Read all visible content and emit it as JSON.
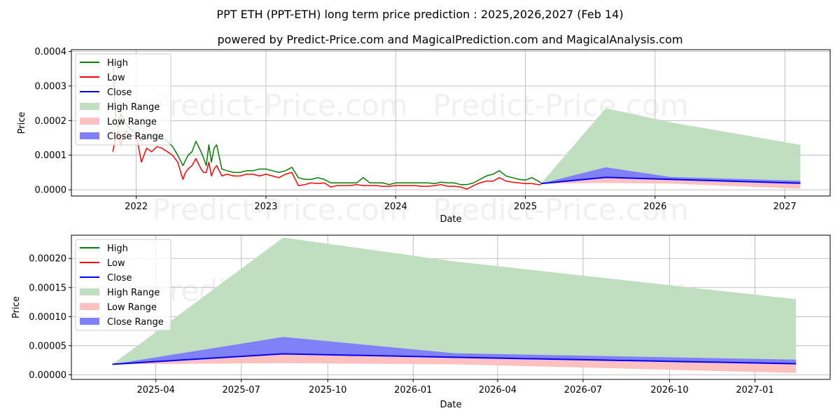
{
  "title_line1": "PPT ETH (PPT-ETH) long term price prediction : 2025,2026,2027 (Feb 14)",
  "title_line2": "powered by Predict-Price.com and MagicalPrediction.com and MagicalAnalysis.com",
  "watermark": "Predict-Price.com",
  "colors": {
    "high": "#008000",
    "low": "#ff0000",
    "close": "#0000ff",
    "high_range": "#c0dfc0",
    "low_range": "#ffc0c0",
    "close_range": "#8080f8",
    "grid": "#b0b0b0"
  },
  "legend": [
    "High",
    "Low",
    "Close",
    "High Range",
    "Low Range",
    "Close Range"
  ],
  "chart_data": [
    {
      "type": "line",
      "name": "history-and-forecast",
      "xlabel": "Date",
      "ylabel": "Price",
      "grid": true,
      "legend_position": "upper-left",
      "xlim": [
        2021.5,
        2027.35
      ],
      "ylim": [
        -1.8e-05,
        0.000405
      ],
      "x_ticks": [
        2022,
        2023,
        2024,
        2025,
        2026,
        2027
      ],
      "x_tick_labels": [
        "2022",
        "2023",
        "2024",
        "2025",
        "2026",
        "2027"
      ],
      "y_ticks": [
        0,
        0.0001,
        0.0002,
        0.0003,
        0.0004
      ],
      "y_tick_labels": [
        "0.0000",
        "0.0001",
        "0.0002",
        "0.0003",
        "0.0004"
      ],
      "history": {
        "x": [
          2021.82,
          2021.84,
          2021.86,
          2021.88,
          2021.92,
          2021.96,
          2022.0,
          2022.04,
          2022.08,
          2022.12,
          2022.16,
          2022.2,
          2022.24,
          2022.28,
          2022.32,
          2022.36,
          2022.38,
          2022.4,
          2022.43,
          2022.46,
          2022.5,
          2022.52,
          2022.54,
          2022.56,
          2022.58,
          2022.6,
          2022.62,
          2022.66,
          2022.7,
          2022.75,
          2022.8,
          2022.85,
          2022.9,
          2022.95,
          2023.0,
          2023.05,
          2023.1,
          2023.15,
          2023.2,
          2023.25,
          2023.3,
          2023.35,
          2023.4,
          2023.45,
          2023.5,
          2023.55,
          2023.6,
          2023.65,
          2023.7,
          2023.75,
          2023.8,
          2023.85,
          2023.9,
          2023.95,
          2024.0,
          2024.05,
          2024.1,
          2024.15,
          2024.2,
          2024.25,
          2024.3,
          2024.35,
          2024.4,
          2024.45,
          2024.5,
          2024.55,
          2024.6,
          2024.65,
          2024.7,
          2024.75,
          2024.8,
          2024.85,
          2024.9,
          2024.95,
          2025.0,
          2025.05,
          2025.1,
          2025.12
        ],
        "high": [
          0.00038,
          0.00021,
          0.00018,
          0.00022,
          0.00019,
          0.000175,
          0.000165,
          0.00014,
          0.00015,
          0.00016,
          0.000145,
          0.00015,
          0.00014,
          0.000125,
          0.0001,
          7e-05,
          8.5e-05,
          0.0001,
          0.00011,
          0.00014,
          0.00011,
          9e-05,
          7e-05,
          0.00013,
          8e-05,
          0.00012,
          0.00013,
          6e-05,
          5.5e-05,
          5e-05,
          5e-05,
          5.5e-05,
          5.5e-05,
          6e-05,
          6e-05,
          5.5e-05,
          5e-05,
          5.5e-05,
          6.5e-05,
          3.5e-05,
          3e-05,
          3e-05,
          3.5e-05,
          3e-05,
          2e-05,
          2e-05,
          2e-05,
          2e-05,
          2e-05,
          3.5e-05,
          2e-05,
          2e-05,
          2e-05,
          1.5e-05,
          2e-05,
          2e-05,
          2e-05,
          2e-05,
          2e-05,
          2e-05,
          1.8e-05,
          2.2e-05,
          2e-05,
          2e-05,
          1.5e-05,
          1.5e-05,
          2e-05,
          3e-05,
          4e-05,
          4.5e-05,
          5.5e-05,
          4e-05,
          3.5e-05,
          3e-05,
          2.8e-05,
          3.5e-05,
          2.5e-05,
          2e-05
        ],
        "low": [
          0.00011,
          0.00015,
          0.00017,
          0.00013,
          0.00017,
          0.000155,
          0.00016,
          8e-05,
          0.00012,
          0.00011,
          0.000125,
          0.00012,
          0.00011,
          0.0001,
          8e-05,
          3e-05,
          5e-05,
          6e-05,
          7e-05,
          9e-05,
          6e-05,
          5e-05,
          5e-05,
          8e-05,
          4e-05,
          6e-05,
          7e-05,
          4e-05,
          4.5e-05,
          4e-05,
          4e-05,
          4.5e-05,
          4.5e-05,
          4e-05,
          4.5e-05,
          4e-05,
          3.5e-05,
          4.5e-05,
          5e-05,
          1.2e-05,
          1.5e-05,
          2e-05,
          1.8e-05,
          2e-05,
          8e-06,
          1.2e-05,
          1.2e-05,
          1.2e-05,
          1.5e-05,
          1.2e-05,
          1.2e-05,
          1.2e-05,
          1e-05,
          1e-05,
          1.2e-05,
          1.2e-05,
          1.2e-05,
          1.2e-05,
          1e-05,
          1e-05,
          1.2e-05,
          1.5e-05,
          1e-05,
          1e-05,
          8e-06,
          2e-06,
          1.2e-05,
          2e-05,
          2.5e-05,
          2.5e-05,
          3.5e-05,
          2.5e-05,
          2.2e-05,
          2e-05,
          1.8e-05,
          1.8e-05,
          1.5e-05,
          1.5e-05
        ]
      },
      "forecast": {
        "x": [
          2025.12,
          2025.62,
          2026.12,
          2027.12
        ],
        "close": [
          1.8e-05,
          3.6e-05,
          3e-05,
          1.9e-05
        ],
        "high_range": [
          [
            1.8e-05,
            1.8e-05
          ],
          [
            2e-05,
            0.000236
          ],
          [
            1.8e-05,
            0.000195
          ],
          [
            5e-06,
            0.00013
          ]
        ],
        "low_range": [
          [
            1.8e-05,
            1.8e-05
          ],
          [
            2e-05,
            3.6e-05
          ],
          [
            1.8e-05,
            3e-05
          ],
          [
            3e-06,
            1.9e-05
          ]
        ],
        "close_range": [
          [
            1.8e-05,
            1.8e-05
          ],
          [
            3.6e-05,
            6.5e-05
          ],
          [
            3e-05,
            3.7e-05
          ],
          [
            1.9e-05,
            2.6e-05
          ]
        ]
      }
    },
    {
      "type": "line",
      "name": "forecast-zoom",
      "xlabel": "Date",
      "ylabel": "Price",
      "grid": true,
      "legend_position": "upper-left",
      "xlim": [
        2025.0,
        2027.22
      ],
      "ylim": [
        -8e-06,
        0.00024
      ],
      "x_ticks": [
        2025.247,
        2025.497,
        2025.75,
        2026.0,
        2026.247,
        2026.497,
        2026.75,
        2027.0
      ],
      "x_tick_labels": [
        "2025-04",
        "2025-07",
        "2025-10",
        "2026-01",
        "2026-04",
        "2026-07",
        "2026-10",
        "2027-01"
      ],
      "y_ticks": [
        0,
        5e-05,
        0.0001,
        0.00015,
        0.0002
      ],
      "y_tick_labels": [
        "0.00000",
        "0.00005",
        "0.00010",
        "0.00015",
        "0.00020"
      ],
      "forecast": {
        "x": [
          2025.12,
          2025.62,
          2026.12,
          2027.12
        ],
        "close": [
          1.8e-05,
          3.6e-05,
          3e-05,
          1.9e-05
        ],
        "high_range": [
          [
            1.8e-05,
            1.8e-05
          ],
          [
            2e-05,
            0.000236
          ],
          [
            1.8e-05,
            0.000195
          ],
          [
            5e-06,
            0.00013
          ]
        ],
        "low_range": [
          [
            1.8e-05,
            1.8e-05
          ],
          [
            2e-05,
            3.6e-05
          ],
          [
            1.8e-05,
            3e-05
          ],
          [
            3e-06,
            1.9e-05
          ]
        ],
        "close_range": [
          [
            1.8e-05,
            1.8e-05
          ],
          [
            3.6e-05,
            6.5e-05
          ],
          [
            3e-05,
            3.7e-05
          ],
          [
            1.9e-05,
            2.6e-05
          ]
        ]
      }
    }
  ]
}
